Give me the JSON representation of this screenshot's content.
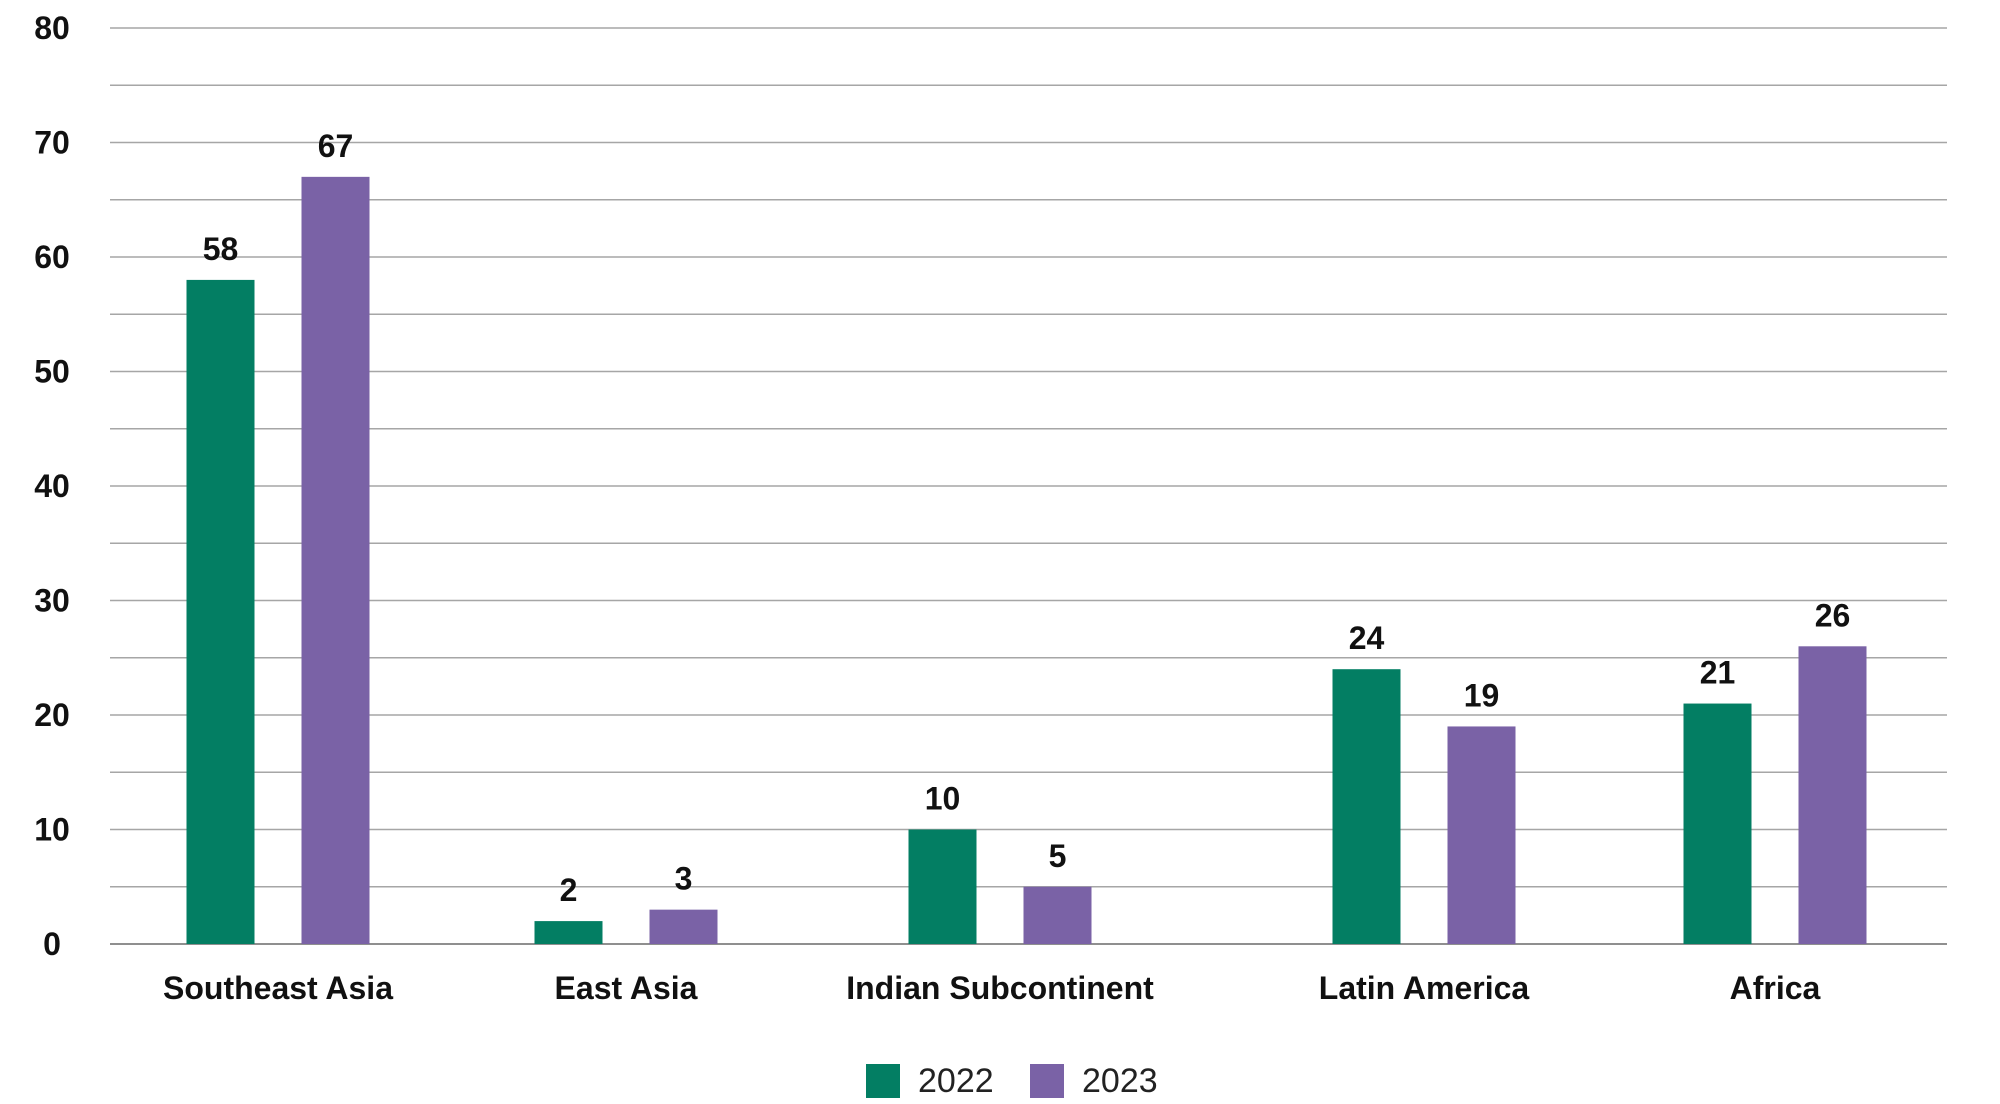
{
  "chart_data": {
    "type": "bar",
    "title": "",
    "xlabel": "",
    "ylabel": "",
    "categories": [
      "Southeast Asia",
      "East Asia",
      "Indian Subcontinent",
      "Latin America",
      "Africa"
    ],
    "series": [
      {
        "name": "2022",
        "color": "#037e63",
        "values": [
          58,
          2,
          10,
          24,
          21
        ],
        "labels": [
          "58",
          "2",
          "10",
          "24",
          "21"
        ]
      },
      {
        "name": "2023",
        "color": "#7a62a6",
        "values": [
          67,
          3,
          5,
          19,
          26
        ],
        "labels": [
          "67",
          "3",
          "5",
          "19",
          "26"
        ]
      }
    ],
    "ylim": [
      0,
      80
    ],
    "yticks": [
      0,
      10,
      20,
      30,
      40,
      50,
      60,
      70,
      80
    ],
    "ytick_labels": [
      "0",
      "10",
      "20",
      "30",
      "40",
      "50",
      "60",
      "70",
      "80"
    ],
    "grid": true,
    "legend_position": "bottom-center"
  }
}
